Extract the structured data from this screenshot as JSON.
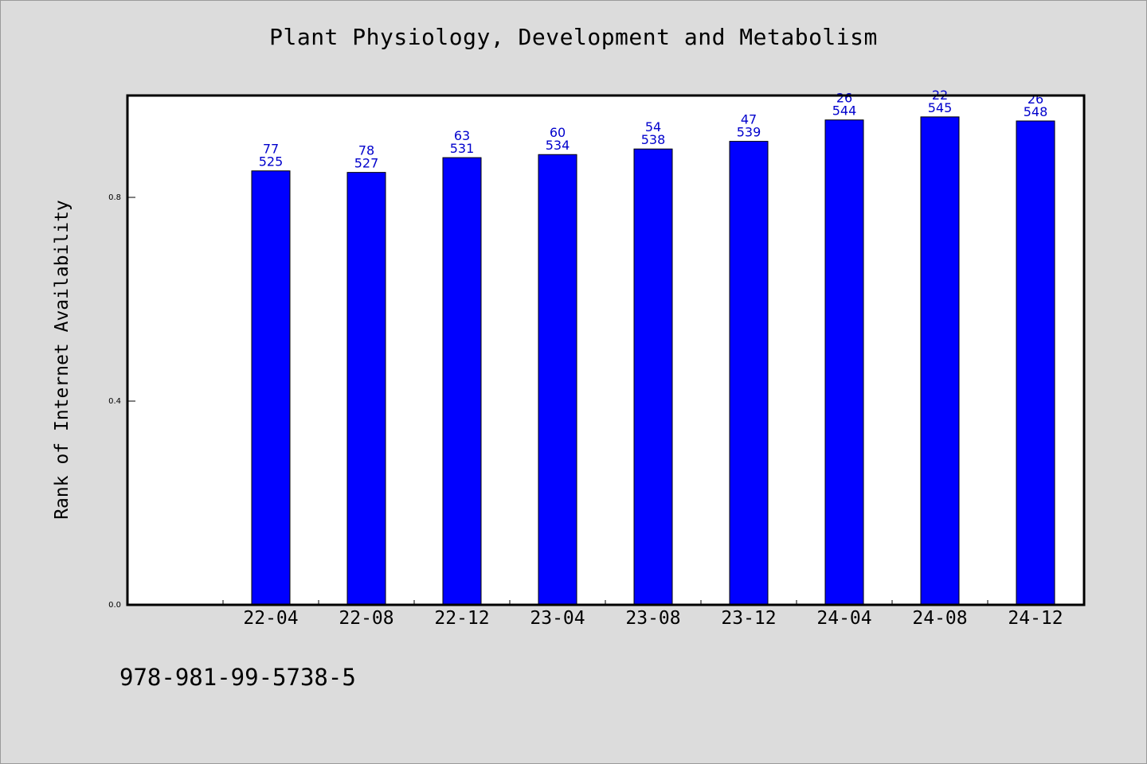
{
  "chart_data": {
    "type": "bar",
    "title": "Plant Physiology, Development and Metabolism",
    "xlabel": "",
    "ylabel": "Rank of Internet Availability",
    "categories": [
      "22-04",
      "22-08",
      "22-12",
      "23-04",
      "23-08",
      "23-12",
      "24-04",
      "24-08",
      "24-12"
    ],
    "values": [
      0.852,
      0.849,
      0.878,
      0.884,
      0.895,
      0.91,
      0.952,
      0.958,
      0.95
    ],
    "bar_labels_top": [
      "77",
      "78",
      "63",
      "60",
      "54",
      "47",
      "26",
      "22",
      "26"
    ],
    "bar_labels_bottom": [
      "525",
      "527",
      "531",
      "534",
      "538",
      "539",
      "544",
      "545",
      "548"
    ],
    "ylim": [
      0,
      1.0
    ],
    "yticks": [
      0.0,
      0.4,
      0.8
    ],
    "ytick_labels": [
      "0.0",
      "0.4",
      "0.8"
    ],
    "grid": false,
    "legend": "none",
    "colors": {
      "bar": "#0000ff",
      "bar_label": "#0000cc",
      "plot_bg": "#ffffff",
      "page_bg": "#dcdcdc"
    }
  },
  "footer": {
    "isbn": "978-981-99-5738-5"
  }
}
